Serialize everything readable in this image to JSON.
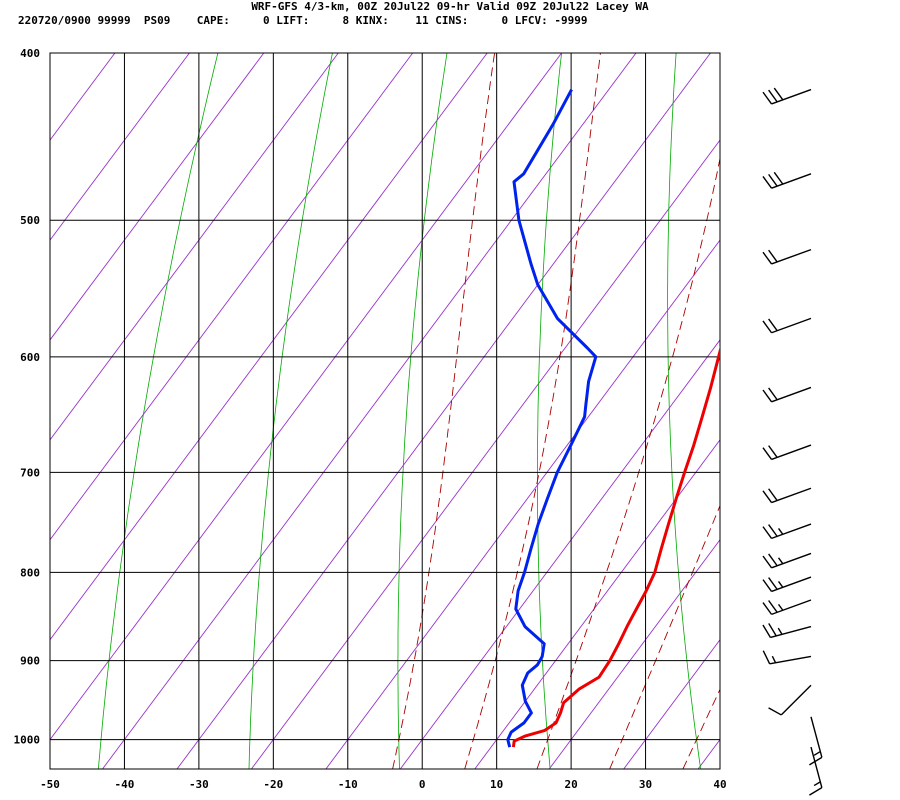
{
  "header": {
    "title": "WRF-GFS 4/3-km, 00Z 20Jul22 09-hr Valid 09Z 20Jul22 Lacey WA",
    "stats": "220720/0900 99999  PS09    CAPE:     0 LIFT:     8 KINX:    11 CINS:     0 LFCV: -9999"
  },
  "chart_data": {
    "type": "line",
    "title": "WRF-GFS 4/3-km, 00Z 20Jul22 09-hr Valid 09Z 20Jul22 Lacey WA",
    "subtitle": "220720/0900 99999  PS09    CAPE:     0 LIFT:     8 KINX:    11 CINS:     0 LFCV: -9999",
    "xlim": [
      -50,
      40
    ],
    "ylim": [
      1040,
      400
    ],
    "y_scale": "log-pressure",
    "x_ticks": [
      "-50",
      "-40",
      "-30",
      "-20",
      "-10",
      "0",
      "10",
      "20",
      "30",
      "40"
    ],
    "y_ticks": [
      "400",
      "500",
      "600",
      "700",
      "800",
      "900",
      "1000"
    ],
    "x_tick_values": [
      -50,
      -40,
      -30,
      -20,
      -10,
      0,
      10,
      20,
      30,
      40
    ],
    "y_tick_values": [
      400,
      500,
      600,
      700,
      800,
      900,
      1000
    ],
    "grid": true,
    "skew_c_per_decade_lnp": 75,
    "colors": {
      "temperature": "#ee0000",
      "dewpoint": "#0022ee",
      "isotherm": "#9933cc",
      "dry_adiabat": "#00aa00",
      "moist_adiabat": "#aa0000",
      "grid": "#000000"
    },
    "series": [
      {
        "key": "temperature",
        "points": [
          {
            "p": 1010,
            "t": 13.0
          },
          {
            "p": 1002,
            "t": 12.5
          },
          {
            "p": 995,
            "t": 13.5
          },
          {
            "p": 988,
            "t": 15.5
          },
          {
            "p": 978,
            "t": 16.3
          },
          {
            "p": 965,
            "t": 15.9
          },
          {
            "p": 952,
            "t": 15.3
          },
          {
            "p": 935,
            "t": 16.0
          },
          {
            "p": 920,
            "t": 17.5
          },
          {
            "p": 900,
            "t": 17.3
          },
          {
            "p": 880,
            "t": 16.8
          },
          {
            "p": 860,
            "t": 16.2
          },
          {
            "p": 840,
            "t": 15.7
          },
          {
            "p": 820,
            "t": 15.2
          },
          {
            "p": 800,
            "t": 14.5
          },
          {
            "p": 775,
            "t": 13.0
          },
          {
            "p": 750,
            "t": 11.5
          },
          {
            "p": 725,
            "t": 10.0
          },
          {
            "p": 700,
            "t": 8.5
          },
          {
            "p": 675,
            "t": 7.0
          },
          {
            "p": 650,
            "t": 5.3
          },
          {
            "p": 625,
            "t": 3.5
          },
          {
            "p": 600,
            "t": 1.5
          },
          {
            "p": 570,
            "t": -1.0
          },
          {
            "p": 540,
            "t": -3.5
          },
          {
            "p": 510,
            "t": -6.5
          },
          {
            "p": 480,
            "t": -10.0
          },
          {
            "p": 450,
            "t": -14.5
          },
          {
            "p": 420,
            "t": -19.0
          }
        ]
      },
      {
        "key": "dewpoint",
        "points": [
          {
            "p": 1010,
            "t": 12.5
          },
          {
            "p": 1000,
            "t": 11.5
          },
          {
            "p": 990,
            "t": 11.2
          },
          {
            "p": 978,
            "t": 12.0
          },
          {
            "p": 965,
            "t": 12.0
          },
          {
            "p": 950,
            "t": 10.0
          },
          {
            "p": 930,
            "t": 8.0
          },
          {
            "p": 915,
            "t": 7.5
          },
          {
            "p": 905,
            "t": 8.0
          },
          {
            "p": 895,
            "t": 7.8
          },
          {
            "p": 880,
            "t": 6.8
          },
          {
            "p": 860,
            "t": 2.5
          },
          {
            "p": 840,
            "t": -0.5
          },
          {
            "p": 820,
            "t": -2.0
          },
          {
            "p": 800,
            "t": -3.0
          },
          {
            "p": 775,
            "t": -4.5
          },
          {
            "p": 750,
            "t": -6.0
          },
          {
            "p": 725,
            "t": -7.3
          },
          {
            "p": 700,
            "t": -8.6
          },
          {
            "p": 675,
            "t": -9.5
          },
          {
            "p": 650,
            "t": -10.5
          },
          {
            "p": 640,
            "t": -11.5
          },
          {
            "p": 620,
            "t": -13.5
          },
          {
            "p": 600,
            "t": -15.0
          },
          {
            "p": 593,
            "t": -17.0
          },
          {
            "p": 570,
            "t": -24.0
          },
          {
            "p": 545,
            "t": -30.0
          },
          {
            "p": 530,
            "t": -33.0
          },
          {
            "p": 500,
            "t": -39.0
          },
          {
            "p": 475,
            "t": -43.5
          },
          {
            "p": 470,
            "t": -43.0
          },
          {
            "p": 440,
            "t": -44.0
          },
          {
            "p": 420,
            "t": -45.0
          }
        ]
      }
    ],
    "isotherms_c": [
      -120,
      -110,
      -100,
      -90,
      -80,
      -70,
      -60,
      -50,
      -40,
      -30,
      -20,
      -10,
      0,
      10,
      20,
      30,
      40
    ],
    "dry_adiabats_thetaK": [
      230,
      250,
      270,
      290,
      310,
      330,
      350,
      370,
      390,
      410,
      430,
      450,
      470
    ],
    "moist_adiabats_thetaK": [
      270,
      280,
      290,
      300,
      310,
      320,
      330,
      340,
      350,
      360,
      370
    ],
    "wind_barbs": [
      {
        "p": 420,
        "dir_deg": 250,
        "speed_kt": 30
      },
      {
        "p": 470,
        "dir_deg": 250,
        "speed_kt": 30
      },
      {
        "p": 520,
        "dir_deg": 250,
        "speed_kt": 20
      },
      {
        "p": 570,
        "dir_deg": 250,
        "speed_kt": 20
      },
      {
        "p": 625,
        "dir_deg": 250,
        "speed_kt": 20
      },
      {
        "p": 675,
        "dir_deg": 250,
        "speed_kt": 20
      },
      {
        "p": 715,
        "dir_deg": 250,
        "speed_kt": 20
      },
      {
        "p": 750,
        "dir_deg": 250,
        "speed_kt": 25
      },
      {
        "p": 780,
        "dir_deg": 250,
        "speed_kt": 25
      },
      {
        "p": 805,
        "dir_deg": 250,
        "speed_kt": 25
      },
      {
        "p": 830,
        "dir_deg": 250,
        "speed_kt": 25
      },
      {
        "p": 860,
        "dir_deg": 255,
        "speed_kt": 25
      },
      {
        "p": 895,
        "dir_deg": 260,
        "speed_kt": 15
      },
      {
        "p": 930,
        "dir_deg": 225,
        "speed_kt": 10
      },
      {
        "p": 970,
        "dir_deg": 165,
        "speed_kt": 15
      },
      {
        "p": 1010,
        "dir_deg": 165,
        "speed_kt": 15
      }
    ]
  }
}
